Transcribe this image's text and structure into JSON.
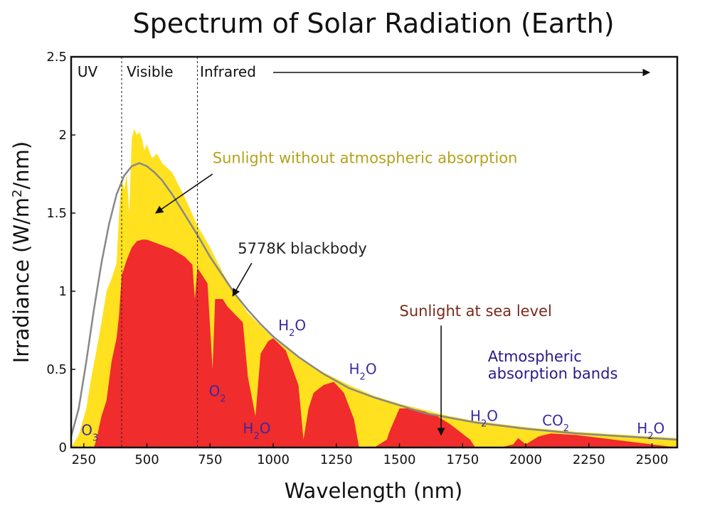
{
  "chart_data": {
    "type": "area",
    "title": "Spectrum of Solar Radiation (Earth)",
    "xlabel": "Wavelength (nm)",
    "ylabel_parts": {
      "base": "Irradiance (W/m",
      "sup": "2",
      "tail": "/nm)"
    },
    "xlim": [
      200,
      2600
    ],
    "ylim": [
      0,
      2.5
    ],
    "x_ticks": [
      250,
      500,
      750,
      1000,
      1250,
      1500,
      1750,
      2000,
      2250,
      2500
    ],
    "x_tick_labels": [
      "250",
      "500",
      "750",
      "1000",
      "1250",
      "1500",
      "1750",
      "2000",
      "2250",
      "2500"
    ],
    "y_ticks": [
      0,
      0.5,
      1,
      1.5,
      2,
      2.5
    ],
    "y_tick_labels": [
      "0",
      "0.5",
      "1",
      "1.5",
      "2",
      "2.5"
    ],
    "grid": false,
    "region_dividers": [
      400,
      700
    ],
    "region_labels": [
      {
        "label": "UV",
        "x": 225,
        "y": 2.4
      },
      {
        "label": "Visible",
        "x": 420,
        "y": 2.4
      },
      {
        "label": "Infrared",
        "x": 710,
        "y": 2.4
      }
    ],
    "infrared_arrow": {
      "x_start": 1000,
      "x_end": 2490,
      "y": 2.4
    },
    "series": [
      {
        "name": "Sunlight without atmospheric absorption",
        "color": "#ffe11f",
        "x": [
          200,
          230,
          260,
          280,
          300,
          320,
          340,
          360,
          380,
          390,
          400,
          410,
          420,
          430,
          440,
          450,
          460,
          470,
          480,
          490,
          500,
          520,
          540,
          560,
          580,
          600,
          650,
          700,
          750,
          800,
          850,
          900,
          950,
          1000,
          1100,
          1200,
          1300,
          1400,
          1500,
          1600,
          1700,
          1800,
          1900,
          2000,
          2200,
          2400,
          2600
        ],
        "y": [
          0.0,
          0.08,
          0.25,
          0.45,
          0.62,
          0.8,
          1.0,
          1.08,
          1.18,
          1.5,
          1.72,
          1.65,
          1.75,
          1.5,
          1.98,
          2.04,
          2.0,
          2.02,
          1.98,
          1.9,
          1.94,
          1.85,
          1.88,
          1.82,
          1.79,
          1.76,
          1.6,
          1.42,
          1.28,
          1.12,
          0.98,
          0.86,
          0.78,
          0.7,
          0.58,
          0.48,
          0.4,
          0.33,
          0.28,
          0.24,
          0.2,
          0.17,
          0.15,
          0.13,
          0.1,
          0.08,
          0.06
        ]
      },
      {
        "name": "Sunlight at sea level",
        "color": "#f02c2c",
        "x": [
          200,
          290,
          300,
          320,
          340,
          360,
          380,
          390,
          400,
          420,
          440,
          460,
          480,
          500,
          550,
          600,
          650,
          680,
          690,
          700,
          720,
          740,
          760,
          770,
          800,
          820,
          880,
          900,
          930,
          950,
          980,
          1000,
          1050,
          1100,
          1120,
          1140,
          1160,
          1200,
          1240,
          1280,
          1320,
          1340,
          1350,
          1400,
          1450,
          1460,
          1500,
          1550,
          1600,
          1650,
          1700,
          1780,
          1800,
          1900,
          1950,
          1970,
          2000,
          2050,
          2100,
          2200,
          2300,
          2400,
          2500,
          2600
        ],
        "y": [
          0.0,
          0.0,
          0.05,
          0.2,
          0.3,
          0.55,
          0.7,
          0.85,
          1.1,
          1.2,
          1.28,
          1.32,
          1.33,
          1.33,
          1.3,
          1.27,
          1.22,
          1.17,
          0.95,
          1.15,
          1.1,
          1.05,
          0.5,
          0.95,
          0.95,
          0.9,
          0.8,
          0.45,
          0.2,
          0.6,
          0.68,
          0.7,
          0.62,
          0.4,
          0.05,
          0.25,
          0.35,
          0.4,
          0.42,
          0.35,
          0.18,
          0.0,
          0.0,
          0.0,
          0.05,
          0.1,
          0.25,
          0.25,
          0.23,
          0.2,
          0.15,
          0.05,
          0.0,
          0.0,
          0.02,
          0.06,
          0.02,
          0.07,
          0.09,
          0.08,
          0.06,
          0.04,
          0.02,
          0.0
        ]
      },
      {
        "name": "5778K blackbody",
        "color": "#888888",
        "x": [
          200,
          230,
          260,
          290,
          320,
          350,
          380,
          410,
          440,
          470,
          500,
          530,
          560,
          600,
          650,
          700,
          750,
          800,
          850,
          900,
          950,
          1000,
          1100,
          1200,
          1300,
          1400,
          1500,
          1600,
          1800,
          2000,
          2200,
          2400,
          2600
        ],
        "y": [
          0.07,
          0.25,
          0.55,
          0.88,
          1.18,
          1.43,
          1.62,
          1.74,
          1.8,
          1.82,
          1.8,
          1.76,
          1.71,
          1.62,
          1.49,
          1.36,
          1.22,
          1.1,
          0.98,
          0.88,
          0.79,
          0.71,
          0.58,
          0.47,
          0.38,
          0.32,
          0.27,
          0.22,
          0.16,
          0.12,
          0.09,
          0.07,
          0.05
        ]
      }
    ],
    "annotations": [
      {
        "label": "Sunlight without atmospheric absorption",
        "color": "#b5a21a",
        "x": 760,
        "y": 1.82,
        "arrow_from": [
          760,
          1.75
        ],
        "arrow_to": [
          535,
          1.5
        ]
      },
      {
        "label": "5778K blackbody",
        "color": "#222222",
        "x": 860,
        "y": 1.24,
        "arrow_from": [
          915,
          1.18
        ],
        "arrow_to": [
          840,
          0.97
        ]
      },
      {
        "label": "Sunlight at sea level",
        "color": "#7a2a1a",
        "x": 1500,
        "y": 0.84,
        "arrow_from": [
          1665,
          0.78
        ],
        "arrow_to": [
          1665,
          0.08
        ]
      },
      {
        "label": "Atmospheric",
        "color": "#2a1a8a",
        "x": 1850,
        "y": 0.55
      },
      {
        "label": "absorption bands",
        "color": "#2a1a8a",
        "x": 1850,
        "y": 0.44
      }
    ],
    "molecule_labels": [
      {
        "base": "O",
        "sub": "3",
        "x": 240,
        "y": 0.08
      },
      {
        "base": "O",
        "sub": "2",
        "x": 745,
        "y": 0.33
      },
      {
        "base": "H",
        "sub": "2",
        "tail": "O",
        "x": 880,
        "y": 0.09
      },
      {
        "base": "H",
        "sub": "2",
        "tail": "O",
        "x": 1020,
        "y": 0.75
      },
      {
        "base": "H",
        "sub": "2",
        "tail": "O",
        "x": 1300,
        "y": 0.47
      },
      {
        "base": "H",
        "sub": "2",
        "tail": "O",
        "x": 1780,
        "y": 0.17
      },
      {
        "base": "CO",
        "sub": "2",
        "x": 2065,
        "y": 0.14
      },
      {
        "base": "H",
        "sub": "2",
        "tail": "O",
        "x": 2440,
        "y": 0.09
      }
    ],
    "molecule_color": "#3a2aa0"
  }
}
